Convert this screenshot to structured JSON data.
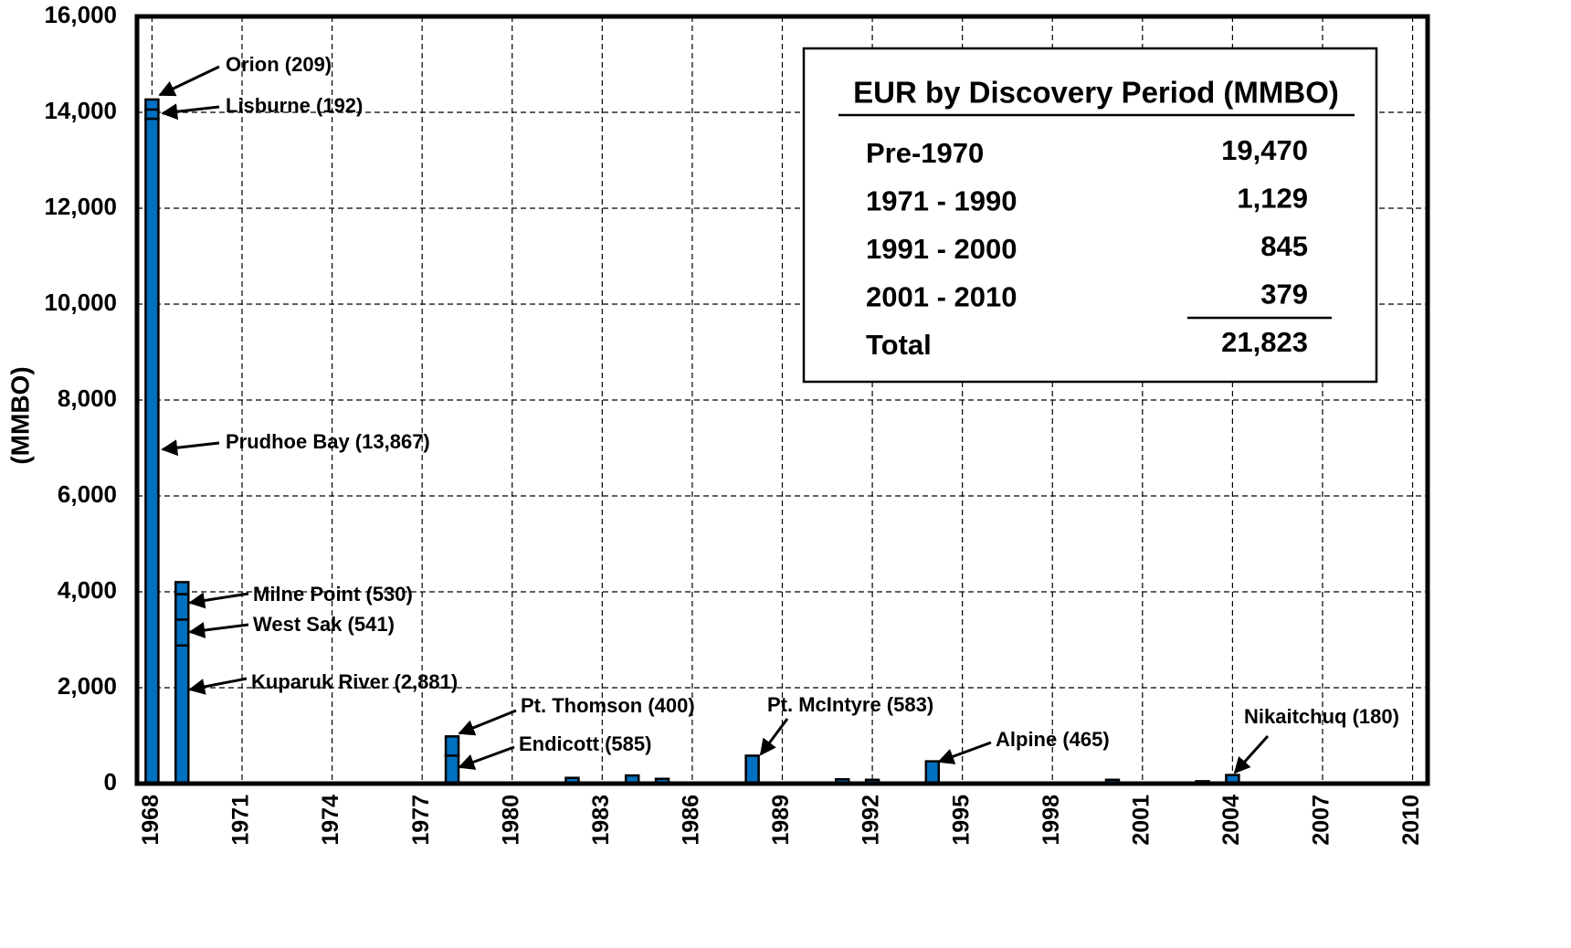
{
  "chart_data": {
    "type": "stacked_bar",
    "y_label": "(MMBO)",
    "xlim": [
      1967.5,
      2010.5
    ],
    "xticks": [
      1968,
      1971,
      1974,
      1977,
      1980,
      1983,
      1986,
      1989,
      1992,
      1995,
      1998,
      2001,
      2004,
      2007,
      2010
    ],
    "ylim": [
      0,
      16000
    ],
    "yticks": [
      0,
      {
        "value": 2000,
        "label": "2,000"
      },
      {
        "value": 4000,
        "label": "4,000"
      },
      {
        "value": 6000,
        "label": "6,000"
      },
      {
        "value": 8000,
        "label": "8,000"
      },
      {
        "value": 10000,
        "label": "10,000"
      },
      {
        "value": 12000,
        "label": "12,000"
      },
      {
        "value": 14000,
        "label": "14,000"
      },
      {
        "value": 16000,
        "label": "16,000"
      }
    ],
    "grid": true,
    "color": "#0070c0",
    "bars": [
      {
        "x": 1968,
        "values": [
          13867,
          192,
          209
        ]
      },
      {
        "x": 1969,
        "values": [
          2881,
          541,
          530,
          250
        ]
      },
      {
        "x": 1978,
        "values": [
          585,
          400
        ]
      },
      {
        "x": 1982,
        "values": [
          120
        ]
      },
      {
        "x": 1984,
        "values": [
          170
        ]
      },
      {
        "x": 1985,
        "values": [
          100
        ]
      },
      {
        "x": 1988,
        "values": [
          583
        ]
      },
      {
        "x": 1990,
        "values": [
          20
        ]
      },
      {
        "x": 1991,
        "values": [
          90
        ]
      },
      {
        "x": 1992,
        "values": [
          80
        ]
      },
      {
        "x": 1994,
        "values": [
          465
        ]
      },
      {
        "x": 2000,
        "values": [
          80
        ]
      },
      {
        "x": 2001,
        "values": [
          20
        ]
      },
      {
        "x": 2002,
        "values": [
          20
        ]
      },
      {
        "x": 2003,
        "values": [
          50
        ]
      },
      {
        "x": 2004,
        "values": [
          180
        ]
      }
    ],
    "annotations": [
      {
        "text": "Orion (209)"
      },
      {
        "text": "Lisburne (192)"
      },
      {
        "text": "Prudhoe Bay (13,867)"
      },
      {
        "text": "Milne Point (530)"
      },
      {
        "text": "West Sak (541)"
      },
      {
        "text": "Kuparuk River (2,881)"
      },
      {
        "text": "Pt. Thomson (400)"
      },
      {
        "text": "Endicott (585)"
      },
      {
        "text": "Pt. McIntyre (583)"
      },
      {
        "text": "Alpine (465)"
      },
      {
        "text": "Nikaitchuq (180)"
      }
    ],
    "inset": {
      "title": "EUR by Discovery Period (MMBO)",
      "rows": [
        [
          "Pre-1970",
          "19,470"
        ],
        [
          "1971 - 1990",
          "1,129"
        ],
        [
          "1991 - 2000",
          "845"
        ],
        [
          "2001 - 2010",
          "379"
        ],
        [
          "Total",
          "21,823"
        ]
      ]
    }
  }
}
